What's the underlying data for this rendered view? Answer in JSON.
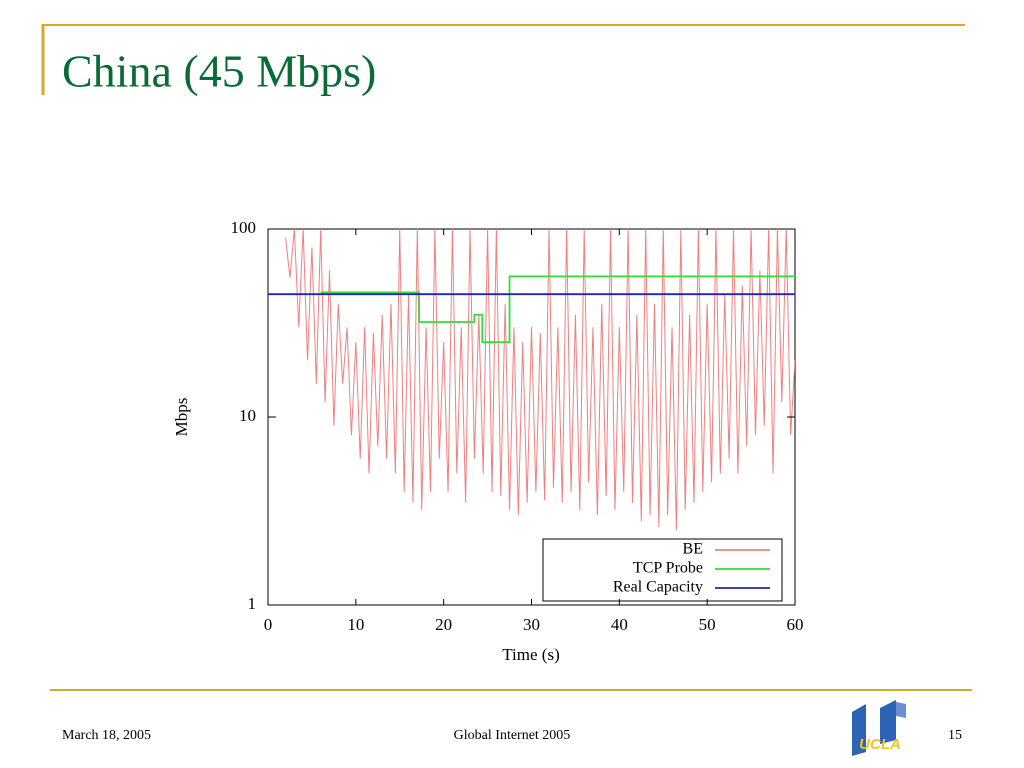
{
  "slide": {
    "title": "China (45 Mbps)",
    "date": "March 18, 2005",
    "footer": "Global Internet 2005",
    "page_number": "15",
    "logo": "UCLA"
  },
  "chart_data": {
    "type": "line",
    "xlabel": "Time (s)",
    "ylabel": "Mbps",
    "xlim": [
      0,
      60
    ],
    "xticks": [
      0,
      10,
      20,
      30,
      40,
      50,
      60
    ],
    "ylim": [
      1,
      100
    ],
    "yticks": [
      1,
      10,
      100
    ],
    "yscale": "log",
    "legend": "lower right",
    "series": [
      {
        "name": "BE",
        "color": "#f08080",
        "x": [
          2,
          2.5,
          3,
          3.5,
          4,
          4.5,
          5,
          5.5,
          6,
          6.5,
          7,
          7.5,
          8,
          8.5,
          9,
          9.5,
          10,
          10.5,
          11,
          11.5,
          12,
          12.5,
          13,
          13.5,
          14,
          14.5,
          15,
          15.5,
          16,
          16.5,
          17,
          17.5,
          18,
          18.5,
          19,
          19.5,
          20,
          20.5,
          21,
          21.5,
          22,
          22.5,
          23,
          23.5,
          24,
          24.5,
          25,
          25.5,
          26,
          26.5,
          27,
          27.5,
          28,
          28.5,
          29,
          29.5,
          30,
          30.5,
          31,
          31.5,
          32,
          32.5,
          33,
          33.5,
          34,
          34.5,
          35,
          35.5,
          36,
          36.5,
          37,
          37.5,
          38,
          38.5,
          39,
          39.5,
          40,
          40.5,
          41,
          41.5,
          42,
          42.5,
          43,
          43.5,
          44,
          44.5,
          45,
          45.5,
          46,
          46.5,
          47,
          47.5,
          48,
          48.5,
          49,
          49.5,
          50,
          50.5,
          51,
          51.5,
          52,
          52.5,
          53,
          53.5,
          54,
          54.5,
          55,
          55.5,
          56,
          56.5,
          57,
          57.5,
          58,
          58.5,
          59,
          59.5,
          60
        ],
        "values": [
          90,
          55,
          100,
          30,
          100,
          20,
          80,
          15,
          100,
          12,
          60,
          9,
          40,
          15,
          30,
          8,
          25,
          6,
          30,
          5,
          28,
          7,
          35,
          6,
          40,
          5,
          100,
          4,
          45,
          3.5,
          100,
          3.2,
          30,
          4,
          100,
          6,
          25,
          4,
          100,
          5,
          30,
          3.5,
          100,
          6,
          35,
          5,
          100,
          4,
          100,
          3.8,
          40,
          3.2,
          30,
          3,
          25,
          3.5,
          30,
          4,
          28,
          3.6,
          100,
          4.2,
          30,
          3.5,
          100,
          4,
          35,
          3.2,
          100,
          4.5,
          30,
          3,
          40,
          3.8,
          100,
          3.2,
          30,
          4,
          100,
          3.5,
          35,
          2.8,
          100,
          3,
          40,
          2.6,
          100,
          3,
          30,
          2.5,
          100,
          3.2,
          35,
          3.5,
          100,
          4,
          40,
          4.5,
          100,
          5,
          45,
          6,
          100,
          5,
          50,
          7,
          100,
          8,
          60,
          9,
          100,
          5,
          100,
          12,
          100,
          8,
          20
        ]
      },
      {
        "name": "TCP Probe",
        "color": "#33dd33",
        "x": [
          6,
          17.2,
          17.2,
          23.5,
          23.5,
          24.4,
          24.4,
          27.5,
          27.5,
          60
        ],
        "values": [
          46,
          46,
          32,
          32,
          35,
          35,
          25,
          25,
          56,
          56
        ]
      },
      {
        "name": "Real Capacity",
        "color": "#2222bb",
        "x": [
          0,
          60
        ],
        "values": [
          45,
          45
        ]
      }
    ]
  }
}
